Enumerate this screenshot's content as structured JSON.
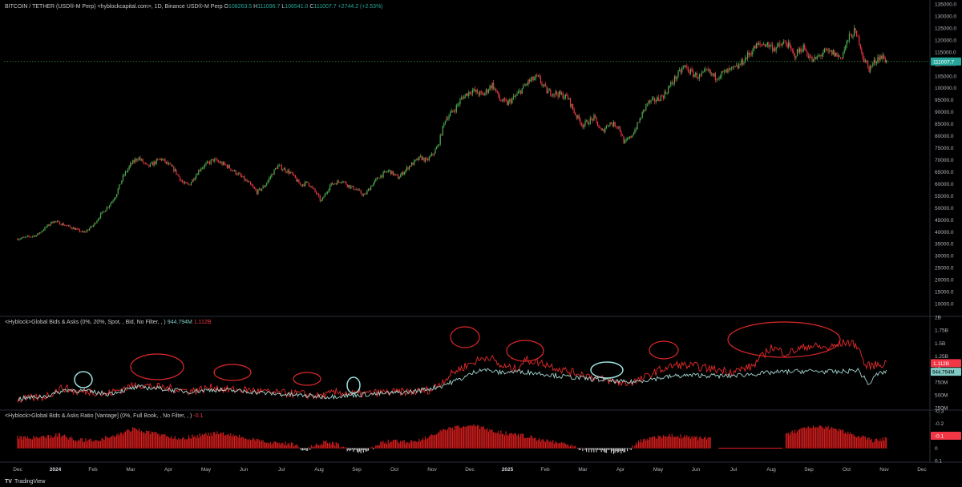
{
  "header": {
    "symbol": "BITCOIN / TETHER (USD®-M Perp) <hyblockcapital.com>, 1D, Binance USD®-M Perp",
    "o_label": "O",
    "o_value": "108263.5",
    "h_label": "H",
    "h_value": "111096.7",
    "l_label": "L",
    "l_value": "106541.0",
    "c_label": "C",
    "c_value": "111007.7",
    "change": "+2744.2 (+2.53%)"
  },
  "price_tag": "111007.7",
  "indicator1": {
    "title": "<Hyblock>Global Bids & Asks (0%, 20%, Spot, , Bid, No Filter, , )",
    "v1": "944.794M",
    "v2": "1.112B",
    "tag_red": "1.112B",
    "tag_cyan": "944.794M"
  },
  "indicator2": {
    "title": "<Hyblock>Global Bids & Asks Ratio [Vantage] (0%, Full Book, , No Filter, , )",
    "v1": "-0.1",
    "tag": "-0.1"
  },
  "brand": {
    "logo": "TV",
    "name": "TradingView"
  },
  "colors": {
    "up": "#26a69a",
    "down": "#f23645",
    "candle_up": "#4caf50",
    "line_red": "#e52a2a",
    "line_cyan": "#a5d6d0",
    "circle_red": "#e0282a",
    "circle_cyan": "#9be1e0"
  },
  "chart_data": [
    {
      "type": "candlestick",
      "title": "BITCOIN / TETHER (USD®-M Perp)",
      "ylim": [
        5000,
        135000
      ],
      "y_ticks": [
        "135000.0",
        "130000.0",
        "125000.0",
        "120000.0",
        "115000.0",
        "110000.0",
        "105000.0",
        "100000.0",
        "95000.0",
        "90000.0",
        "85000.0",
        "80000.0",
        "75000.0",
        "70000.0",
        "65000.0",
        "60000.0",
        "55000.0",
        "50000.0",
        "45000.0",
        "40000.0",
        "35000.0",
        "30000.0",
        "25000.0",
        "20000.0",
        "15000.0",
        "10000.0"
      ],
      "x_ticks": [
        "Dec",
        "2024",
        "Feb",
        "Mar",
        "Apr",
        "May",
        "Jun",
        "Jul",
        "Aug",
        "Sep",
        "Oct",
        "Nov",
        "Dec",
        "2025",
        "Feb",
        "Mar",
        "Apr",
        "May",
        "Jun",
        "Jul",
        "Aug",
        "Sep",
        "Oct",
        "Nov",
        "Dec"
      ],
      "x_tick_months": [
        0,
        1,
        2,
        3,
        4,
        5,
        6,
        7,
        8,
        9,
        10,
        11,
        12,
        13,
        14,
        15,
        16,
        17,
        18,
        19,
        20,
        21,
        22,
        23,
        24
      ],
      "anchors": [
        [
          0,
          37000
        ],
        [
          0.5,
          38500
        ],
        [
          0.95,
          44500
        ],
        [
          1.3,
          42500
        ],
        [
          1.55,
          41000
        ],
        [
          1.75,
          39500
        ],
        [
          2.0,
          42500
        ],
        [
          2.2,
          47000
        ],
        [
          2.45,
          51500
        ],
        [
          2.6,
          55000
        ],
        [
          2.8,
          63000
        ],
        [
          3.0,
          68000
        ],
        [
          3.2,
          71000
        ],
        [
          3.45,
          67000
        ],
        [
          3.8,
          70500
        ],
        [
          4.15,
          66000
        ],
        [
          4.4,
          60000
        ],
        [
          4.55,
          59500
        ],
        [
          4.85,
          66500
        ],
        [
          5.2,
          70000
        ],
        [
          5.55,
          67500
        ],
        [
          5.85,
          64000
        ],
        [
          6.15,
          60000
        ],
        [
          6.35,
          56500
        ],
        [
          6.55,
          59000
        ],
        [
          6.75,
          64000
        ],
        [
          6.9,
          67500
        ],
        [
          7.25,
          64500
        ],
        [
          7.5,
          59500
        ],
        [
          7.7,
          60500
        ],
        [
          7.95,
          55500
        ],
        [
          8.05,
          52500
        ],
        [
          8.3,
          59500
        ],
        [
          8.6,
          61500
        ],
        [
          8.8,
          59000
        ],
        [
          9.0,
          57500
        ],
        [
          9.2,
          55000
        ],
        [
          9.4,
          59500
        ],
        [
          9.6,
          63000
        ],
        [
          9.85,
          65500
        ],
        [
          10.1,
          62500
        ],
        [
          10.4,
          67500
        ],
        [
          10.7,
          71000
        ],
        [
          10.85,
          69500
        ],
        [
          11.0,
          72000
        ],
        [
          11.15,
          75500
        ],
        [
          11.35,
          87000
        ],
        [
          11.6,
          91000
        ],
        [
          11.8,
          96000
        ],
        [
          12.05,
          99000
        ],
        [
          12.35,
          97000
        ],
        [
          12.6,
          101500
        ],
        [
          12.8,
          95000
        ],
        [
          13.0,
          93500
        ],
        [
          13.25,
          97000
        ],
        [
          13.55,
          102500
        ],
        [
          13.8,
          104500
        ],
        [
          14.05,
          98500
        ],
        [
          14.35,
          97500
        ],
        [
          14.6,
          96000
        ],
        [
          14.8,
          89000
        ],
        [
          15.0,
          84500
        ],
        [
          15.3,
          87500
        ],
        [
          15.5,
          81500
        ],
        [
          15.7,
          85500
        ],
        [
          15.95,
          84000
        ],
        [
          16.1,
          77000
        ],
        [
          16.25,
          79000
        ],
        [
          16.45,
          84500
        ],
        [
          16.7,
          93500
        ],
        [
          16.95,
          95000
        ],
        [
          17.15,
          97000
        ],
        [
          17.45,
          104000
        ],
        [
          17.7,
          109000
        ],
        [
          17.9,
          106000
        ],
        [
          18.1,
          104500
        ],
        [
          18.3,
          107000
        ],
        [
          18.5,
          104500
        ],
        [
          18.7,
          106000
        ],
        [
          18.95,
          107500
        ],
        [
          19.1,
          108500
        ],
        [
          19.35,
          113000
        ],
        [
          19.6,
          117500
        ],
        [
          19.85,
          118500
        ],
        [
          20.1,
          116500
        ],
        [
          20.4,
          119000
        ],
        [
          20.6,
          113500
        ],
        [
          20.85,
          117000
        ],
        [
          21.1,
          111000
        ],
        [
          21.4,
          115000
        ],
        [
          21.65,
          114500
        ],
        [
          21.85,
          112500
        ],
        [
          22.05,
          120500
        ],
        [
          22.2,
          123500
        ],
        [
          22.35,
          119000
        ],
        [
          22.45,
          112000
        ],
        [
          22.6,
          108000
        ],
        [
          22.85,
          113000
        ],
        [
          23.0,
          112500
        ],
        [
          23.05,
          111000
        ]
      ]
    },
    {
      "type": "line",
      "title": "<Hyblock>Global Bids & Asks (0%, 20%, Spot, , Bid, No Filter, , )",
      "ylim": [
        220000000,
        2000000000
      ],
      "y_ticks": [
        "2B",
        "1.75B",
        "1.5B",
        "1.25B",
        "1B",
        "750M",
        "500M",
        "250M"
      ],
      "series": [
        {
          "values_anchors": [
            [
              0,
              0.4
            ],
            [
              0.7,
              0.46
            ],
            [
              1.2,
              0.64
            ],
            [
              1.6,
              0.55
            ],
            [
              2.0,
              0.57
            ],
            [
              2.3,
              0.5
            ],
            [
              2.8,
              0.62
            ],
            [
              3.2,
              0.7
            ],
            [
              3.6,
              0.66
            ],
            [
              4.2,
              0.61
            ],
            [
              4.6,
              0.57
            ],
            [
              5.2,
              0.65
            ],
            [
              5.5,
              0.6
            ],
            [
              6.2,
              0.59
            ],
            [
              6.7,
              0.54
            ],
            [
              7.5,
              0.52
            ],
            [
              8.0,
              0.47
            ],
            [
              8.5,
              0.55
            ],
            [
              9.0,
              0.51
            ],
            [
              9.6,
              0.54
            ],
            [
              10.5,
              0.56
            ],
            [
              11.0,
              0.6
            ],
            [
              11.6,
              0.95
            ],
            [
              12.0,
              1.1
            ],
            [
              12.5,
              1.25
            ],
            [
              12.8,
              1.06
            ],
            [
              13.2,
              1.0
            ],
            [
              13.5,
              1.18
            ],
            [
              14.0,
              1.1
            ],
            [
              14.6,
              0.95
            ],
            [
              15.0,
              0.9
            ],
            [
              15.5,
              0.8
            ],
            [
              16.1,
              0.72
            ],
            [
              16.5,
              0.78
            ],
            [
              17.0,
              0.97
            ],
            [
              17.5,
              1.08
            ],
            [
              18.0,
              1.05
            ],
            [
              18.4,
              1.0
            ],
            [
              19.0,
              0.95
            ],
            [
              19.5,
              1.05
            ],
            [
              20.0,
              1.42
            ],
            [
              20.4,
              1.3
            ],
            [
              21.0,
              1.45
            ],
            [
              21.5,
              1.4
            ],
            [
              22.0,
              1.52
            ],
            [
              22.3,
              1.45
            ],
            [
              22.5,
              1.05
            ],
            [
              22.8,
              1.08
            ],
            [
              23.05,
              1.112
            ]
          ]
        },
        {
          "values_anchors": [
            [
              0,
              0.42
            ],
            [
              0.8,
              0.48
            ],
            [
              1.3,
              0.6
            ],
            [
              1.8,
              0.57
            ],
            [
              2.4,
              0.52
            ],
            [
              3.2,
              0.65
            ],
            [
              3.8,
              0.62
            ],
            [
              4.5,
              0.56
            ],
            [
              5.2,
              0.6
            ],
            [
              6.0,
              0.57
            ],
            [
              6.8,
              0.52
            ],
            [
              7.5,
              0.49
            ],
            [
              8.2,
              0.46
            ],
            [
              9.0,
              0.5
            ],
            [
              9.6,
              0.52
            ],
            [
              10.5,
              0.56
            ],
            [
              11.2,
              0.66
            ],
            [
              11.8,
              0.82
            ],
            [
              12.3,
              1.0
            ],
            [
              12.8,
              0.93
            ],
            [
              13.3,
              0.95
            ],
            [
              13.8,
              0.92
            ],
            [
              14.4,
              0.86
            ],
            [
              15.0,
              0.82
            ],
            [
              15.6,
              0.78
            ],
            [
              16.2,
              0.74
            ],
            [
              16.8,
              0.8
            ],
            [
              17.4,
              0.86
            ],
            [
              18.0,
              0.88
            ],
            [
              18.8,
              0.86
            ],
            [
              19.5,
              0.9
            ],
            [
              20.2,
              0.94
            ],
            [
              21.0,
              0.96
            ],
            [
              21.8,
              0.94
            ],
            [
              22.3,
              0.98
            ],
            [
              22.6,
              0.7
            ],
            [
              22.8,
              0.9
            ],
            [
              23.05,
              0.945
            ]
          ]
        }
      ]
    },
    {
      "type": "bar",
      "title": "<Hyblock>Global Bids & Asks Ratio [Vantage] (0%, Full Book, , No Filter, , )",
      "ylim": [
        0.1,
        -0.3
      ],
      "y_ticks": [
        "-0.3",
        "-0.2",
        "-0.1",
        "0",
        "0.1"
      ],
      "anchors": [
        [
          0,
          -0.09
        ],
        [
          0.6,
          -0.08
        ],
        [
          1.1,
          -0.11
        ],
        [
          1.5,
          -0.07
        ],
        [
          2.0,
          -0.06
        ],
        [
          2.6,
          -0.1
        ],
        [
          3.1,
          -0.16
        ],
        [
          3.4,
          -0.13
        ],
        [
          3.8,
          -0.11
        ],
        [
          4.3,
          -0.08
        ],
        [
          4.8,
          -0.1
        ],
        [
          5.3,
          -0.12
        ],
        [
          5.8,
          -0.1
        ],
        [
          6.2,
          -0.07
        ],
        [
          6.6,
          -0.05
        ],
        [
          7.0,
          -0.04
        ],
        [
          7.4,
          -0.03
        ],
        [
          7.6,
          0.03
        ],
        [
          7.9,
          -0.03
        ],
        [
          8.2,
          -0.05
        ],
        [
          8.6,
          -0.02
        ],
        [
          8.8,
          0.02
        ],
        [
          9.0,
          0.03
        ],
        [
          9.3,
          0.02
        ],
        [
          9.6,
          -0.04
        ],
        [
          10.0,
          -0.06
        ],
        [
          10.4,
          -0.05
        ],
        [
          10.8,
          -0.08
        ],
        [
          11.3,
          -0.14
        ],
        [
          11.7,
          -0.17
        ],
        [
          12.1,
          -0.18
        ],
        [
          12.5,
          -0.15
        ],
        [
          12.9,
          -0.12
        ],
        [
          13.3,
          -0.11
        ],
        [
          13.7,
          -0.08
        ],
        [
          14.1,
          -0.06
        ],
        [
          14.5,
          -0.04
        ],
        [
          14.8,
          -0.02
        ],
        [
          15.0,
          0.01
        ],
        [
          15.4,
          0.02
        ],
        [
          15.9,
          0.03
        ],
        [
          16.2,
          0.02
        ],
        [
          16.5,
          -0.05
        ],
        [
          16.9,
          -0.09
        ],
        [
          17.4,
          -0.1
        ],
        [
          17.8,
          -0.09
        ],
        [
          18.1,
          -0.08
        ],
        [
          18.4,
          -0.09
        ]
      ],
      "gaps": [
        [
          18.6,
          20.3
        ]
      ],
      "anchors2": [
        [
          20.4,
          -0.11
        ],
        [
          20.8,
          -0.15
        ],
        [
          21.2,
          -0.17
        ],
        [
          21.6,
          -0.16
        ],
        [
          22.0,
          -0.13
        ],
        [
          22.4,
          -0.09
        ],
        [
          22.7,
          -0.06
        ],
        [
          23.05,
          -0.08
        ]
      ]
    }
  ]
}
